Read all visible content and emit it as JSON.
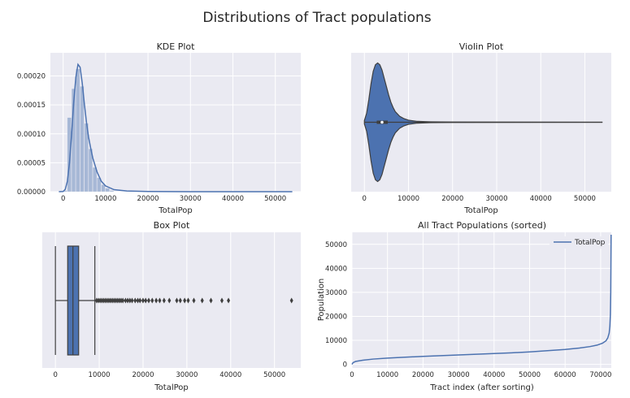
{
  "suptitle": "Distributions of Tract populations",
  "colors": {
    "panel_bg": "#EAEAF2",
    "grid": "#FFFFFF",
    "primary": "#4C72B0",
    "primary_fill": "#A7B8D6",
    "dark": "#3F3F3F"
  },
  "chart_data": [
    {
      "type": "area",
      "title": "KDE Plot",
      "xlabel": "TotalPop",
      "ylabel": "",
      "xlim": [
        -3000,
        56000
      ],
      "ylim": [
        0,
        0.00024
      ],
      "xticks": [
        0,
        10000,
        20000,
        30000,
        40000,
        50000
      ],
      "xtick_labels": [
        "0",
        "10000",
        "20000",
        "30000",
        "40000",
        "50000"
      ],
      "yticks": [
        0,
        5e-05,
        0.0001,
        0.00015,
        0.0002
      ],
      "ytick_labels": [
        "0.00000",
        "0.00005",
        "0.00010",
        "0.00015",
        "0.00020"
      ],
      "grid": true,
      "histogram": {
        "bin_edges": [
          0,
          1000,
          2000,
          3000,
          4000,
          5000,
          6000,
          7000,
          8000,
          9000,
          10000,
          11000,
          12000
        ],
        "density": [
          2e-06,
          0.000128,
          0.000178,
          0.000212,
          0.000182,
          0.000118,
          7.4e-05,
          4.2e-05,
          2.4e-05,
          1.2e-05,
          6e-06,
          2e-06
        ]
      },
      "kde": {
        "x": [
          -1000,
          0,
          500,
          1000,
          1500,
          2000,
          2500,
          3000,
          3500,
          4000,
          4500,
          5000,
          5500,
          6000,
          6500,
          7000,
          8000,
          9000,
          10000,
          12000,
          15000,
          20000,
          30000,
          40000,
          50000,
          54000
        ],
        "y": [
          0.0,
          4e-07,
          4e-06,
          1.8e-05,
          5e-05,
          0.0001,
          0.000155,
          0.000198,
          0.00022,
          0.000215,
          0.000188,
          0.000152,
          0.00012,
          9.4e-05,
          7.5e-05,
          5.8e-05,
          3.4e-05,
          1.8e-05,
          1e-05,
          3.5e-06,
          1.2e-06,
          3e-07,
          5e-08,
          2e-08,
          1e-08,
          0.0
        ]
      }
    },
    {
      "type": "violin",
      "title": "Violin Plot",
      "xlabel": "TotalPop",
      "xlim": [
        -3000,
        56000
      ],
      "xticks": [
        0,
        10000,
        20000,
        30000,
        40000,
        50000
      ],
      "xtick_labels": [
        "0",
        "10000",
        "20000",
        "30000",
        "40000",
        "50000"
      ],
      "grid": true,
      "median": 4000,
      "q1": 2800,
      "q3": 5300,
      "whisker_low": 0,
      "whisker_high": 9000,
      "range": [
        0,
        54000
      ],
      "density_shape": {
        "x": [
          0,
          500,
          1000,
          1500,
          2000,
          2500,
          3000,
          3500,
          4000,
          4500,
          5000,
          5500,
          6000,
          6500,
          7000,
          8000,
          9000,
          10000,
          12000,
          15000,
          20000,
          54000
        ],
        "rel_width": [
          0.03,
          0.15,
          0.38,
          0.65,
          0.86,
          0.97,
          1.0,
          0.97,
          0.88,
          0.74,
          0.6,
          0.46,
          0.34,
          0.25,
          0.18,
          0.1,
          0.06,
          0.035,
          0.015,
          0.008,
          0.004,
          0.0
        ]
      }
    },
    {
      "type": "box",
      "title": "Box Plot",
      "xlabel": "TotalPop",
      "xlim": [
        -3000,
        56000
      ],
      "xticks": [
        0,
        10000,
        20000,
        30000,
        40000,
        50000
      ],
      "xtick_labels": [
        "0",
        "10000",
        "20000",
        "30000",
        "40000",
        "50000"
      ],
      "grid": true,
      "whisker_low": 0,
      "q1": 2800,
      "median": 4000,
      "q3": 5300,
      "whisker_high": 9000,
      "outliers": [
        9400,
        9800,
        10200,
        10600,
        11000,
        11400,
        11800,
        12200,
        12600,
        13000,
        13400,
        13800,
        14200,
        14600,
        15000,
        15400,
        16000,
        16500,
        17000,
        17500,
        18200,
        18800,
        19300,
        20000,
        20600,
        21300,
        22100,
        23000,
        23800,
        24800,
        26000,
        27700,
        28500,
        29500,
        30300,
        31600,
        33500,
        35500,
        38000,
        39500,
        53900
      ]
    },
    {
      "type": "line",
      "title": "All Tract Populations (sorted)",
      "xlabel": "Tract index (after sorting)",
      "ylabel": "Population",
      "xlim": [
        0,
        73000
      ],
      "ylim": [
        -1500,
        55000
      ],
      "xticks": [
        0,
        10000,
        20000,
        30000,
        40000,
        50000,
        60000,
        70000
      ],
      "xtick_labels": [
        "0",
        "10000",
        "20000",
        "30000",
        "40000",
        "50000",
        "60000",
        "70000"
      ],
      "yticks": [
        0,
        10000,
        20000,
        30000,
        40000,
        50000
      ],
      "ytick_labels": [
        "0",
        "10000",
        "20000",
        "30000",
        "40000",
        "50000"
      ],
      "grid": true,
      "legend_position": "top-right",
      "series": [
        {
          "name": "TotalPop",
          "x": [
            0,
            300,
            1000,
            3000,
            6000,
            10000,
            15000,
            20000,
            25000,
            30000,
            35000,
            40000,
            45000,
            50000,
            55000,
            60000,
            64000,
            67000,
            69000,
            70500,
            71500,
            72000,
            72400,
            72600,
            72750,
            72850,
            72950
          ],
          "y": [
            0,
            700,
            1200,
            1700,
            2200,
            2600,
            3000,
            3300,
            3600,
            3900,
            4200,
            4500,
            4800,
            5200,
            5700,
            6200,
            6800,
            7400,
            8000,
            8800,
            9800,
            11000,
            13000,
            16000,
            21000,
            30000,
            54000
          ]
        }
      ]
    }
  ]
}
